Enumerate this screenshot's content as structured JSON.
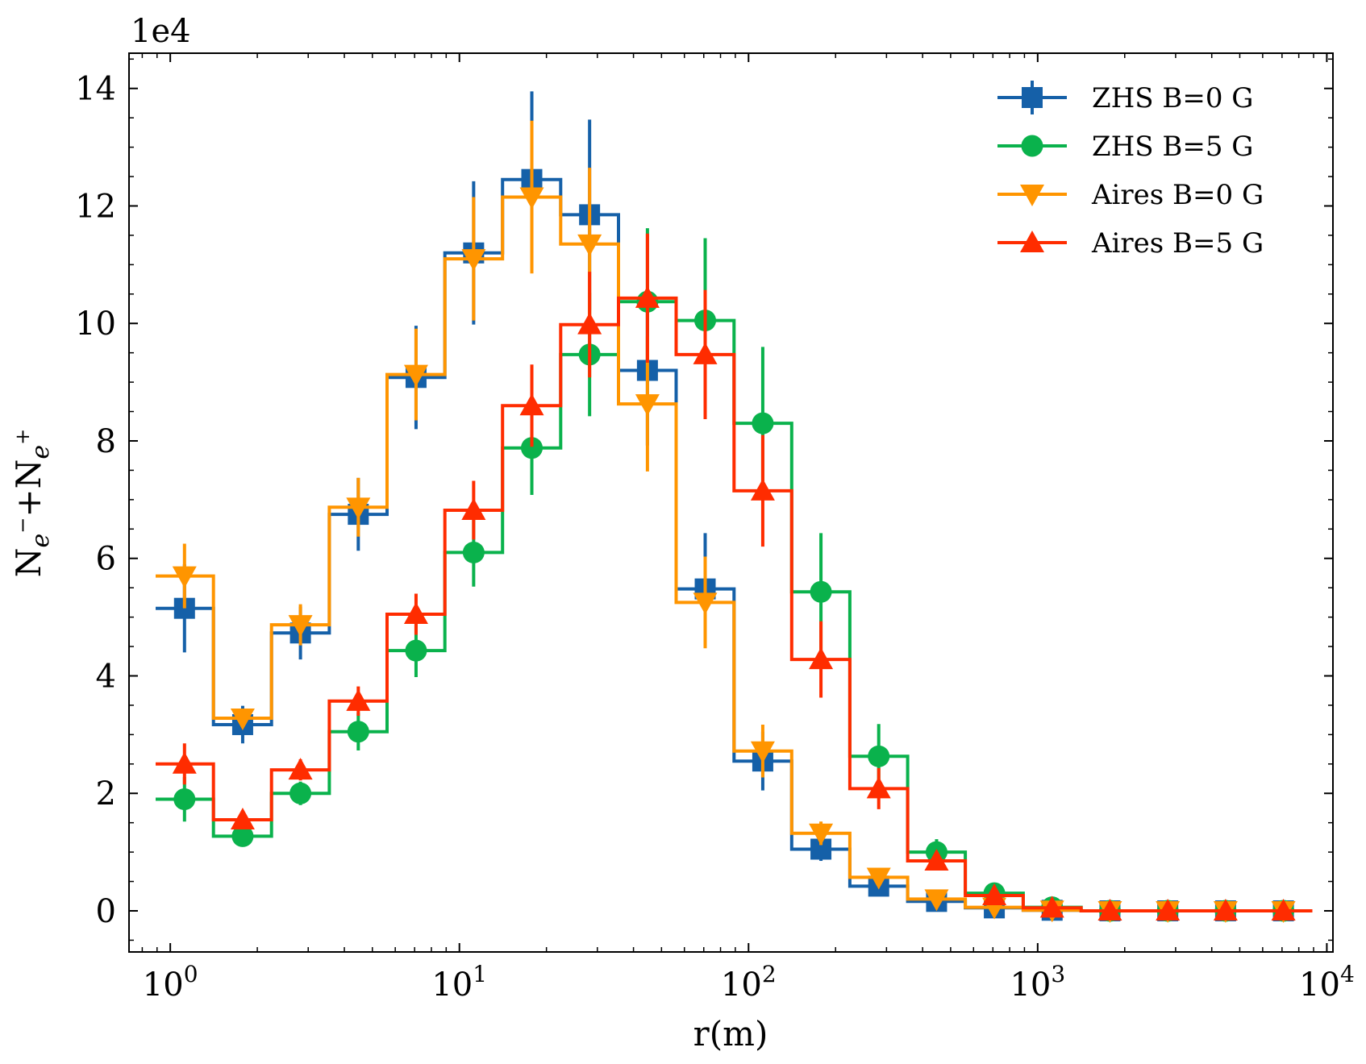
{
  "chart_data": {
    "type": "line",
    "title": "",
    "xlabel": "r(m)",
    "ylabel_parts": {
      "n1": "N",
      "s1": "e",
      "p1": "−",
      "plus": "+",
      "n2": "N",
      "s2": "e",
      "p2": "+"
    },
    "y_scale_label": "1e4",
    "xscale": "log",
    "xlim": [
      0.72,
      10500
    ],
    "ylim": [
      -0.7,
      14.6
    ],
    "x_ticks": [
      {
        "value": 1,
        "base": "10",
        "exp": "0"
      },
      {
        "value": 10,
        "base": "10",
        "exp": "1"
      },
      {
        "value": 100,
        "base": "10",
        "exp": "2"
      },
      {
        "value": 1000,
        "base": "10",
        "exp": "3"
      },
      {
        "value": 10000,
        "base": "10",
        "exp": "4"
      }
    ],
    "y_ticks": [
      {
        "value": 0,
        "label": "0"
      },
      {
        "value": 2,
        "label": "2"
      },
      {
        "value": 4,
        "label": "4"
      },
      {
        "value": 6,
        "label": "6"
      },
      {
        "value": 8,
        "label": "8"
      },
      {
        "value": 10,
        "label": "10"
      },
      {
        "value": 12,
        "label": "12"
      },
      {
        "value": 14,
        "label": "14"
      }
    ],
    "legend_position": "top-right",
    "bin_edges": [
      0.89,
      1.41,
      2.24,
      3.55,
      5.62,
      8.91,
      14.1,
      22.4,
      35.5,
      56.2,
      89.1,
      141,
      224,
      355,
      562,
      891,
      1413,
      2239,
      3548,
      5623,
      8913
    ],
    "bin_centers": [
      1.12,
      1.78,
      2.82,
      4.47,
      7.08,
      11.2,
      17.8,
      28.2,
      44.7,
      70.8,
      112,
      178,
      282,
      447,
      708,
      1122,
      1778,
      2818,
      4467,
      7079
    ],
    "series": [
      {
        "name": "ZHS B=0 G",
        "color": "#1560a8",
        "marker": "square",
        "values": [
          5.15,
          3.17,
          4.73,
          6.75,
          9.08,
          11.2,
          12.45,
          11.85,
          9.2,
          5.48,
          2.55,
          1.05,
          0.42,
          0.16,
          0.05,
          0.01,
          0,
          0,
          0,
          0
        ],
        "errors": [
          0.75,
          0.32,
          0.45,
          0.62,
          0.88,
          1.22,
          1.5,
          1.62,
          1.28,
          0.95,
          0.5,
          0.2,
          0.1,
          0.05,
          0.02,
          0,
          0,
          0,
          0,
          0
        ]
      },
      {
        "name": "ZHS B=5 G",
        "color": "#0ab24c",
        "marker": "circle",
        "values": [
          1.9,
          1.27,
          2.0,
          3.05,
          4.43,
          6.1,
          7.88,
          9.47,
          10.37,
          10.05,
          8.3,
          5.43,
          2.63,
          1.0,
          0.3,
          0.06,
          0,
          0,
          0,
          0
        ],
        "errors": [
          0.38,
          0.15,
          0.2,
          0.32,
          0.45,
          0.58,
          0.8,
          1.05,
          1.25,
          1.4,
          1.3,
          1.0,
          0.55,
          0.22,
          0.08,
          0.02,
          0,
          0,
          0,
          0
        ]
      },
      {
        "name": "Aires B=0 G",
        "color": "#ff9500",
        "marker": "triangle-down",
        "values": [
          5.7,
          3.28,
          4.87,
          6.87,
          9.13,
          11.1,
          12.15,
          11.35,
          8.63,
          5.25,
          2.72,
          1.32,
          0.57,
          0.2,
          0.06,
          0.01,
          0,
          0,
          0,
          0
        ],
        "errors": [
          0.55,
          0.12,
          0.35,
          0.5,
          0.78,
          1.05,
          1.3,
          1.3,
          1.15,
          0.78,
          0.45,
          0.2,
          0.1,
          0.04,
          0.02,
          0,
          0,
          0,
          0,
          0
        ]
      },
      {
        "name": "Aires B=5 G",
        "color": "#ff2c00",
        "marker": "triangle-up",
        "values": [
          2.5,
          1.55,
          2.4,
          3.57,
          5.05,
          6.82,
          8.6,
          9.98,
          10.43,
          9.47,
          7.15,
          4.28,
          2.08,
          0.85,
          0.26,
          0.05,
          0,
          0,
          0,
          0
        ],
        "errors": [
          0.35,
          0.12,
          0.18,
          0.25,
          0.35,
          0.5,
          0.7,
          0.9,
          1.1,
          1.1,
          0.95,
          0.65,
          0.35,
          0.15,
          0.05,
          0.01,
          0,
          0,
          0,
          0
        ]
      }
    ]
  }
}
